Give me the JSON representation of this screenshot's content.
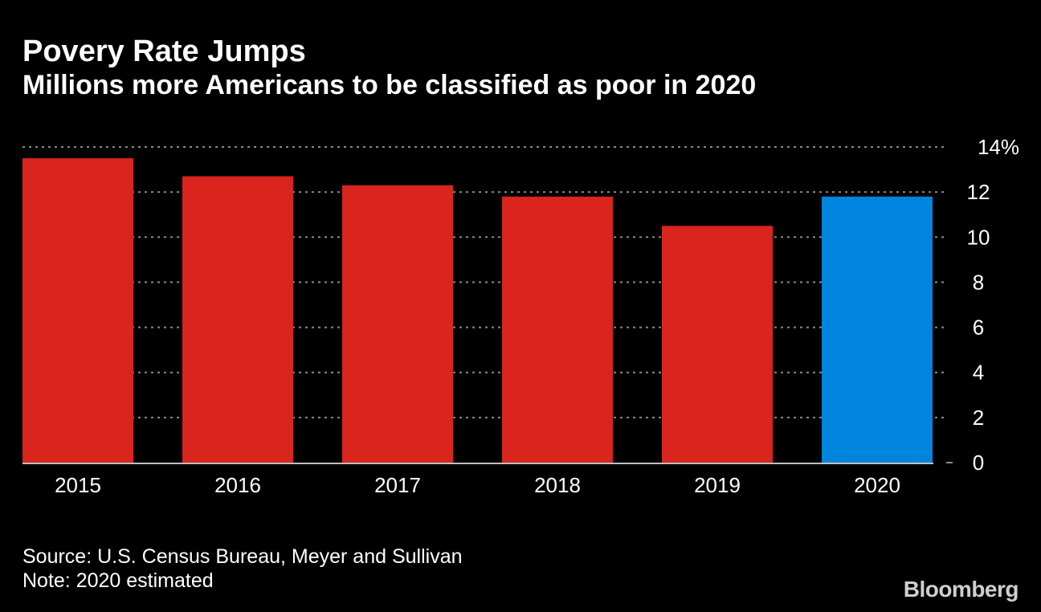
{
  "header": {
    "title": "Povery Rate Jumps",
    "subtitle": "Millions more Americans to be classified as poor in 2020"
  },
  "chart_data": {
    "type": "bar",
    "title": "Povery Rate Jumps",
    "subtitle": "Millions more Americans to be classified as poor in 2020",
    "categories": [
      "2015",
      "2016",
      "2017",
      "2018",
      "2019",
      "2020"
    ],
    "values": [
      13.5,
      12.7,
      12.3,
      11.8,
      10.5,
      11.8
    ],
    "colors": [
      "#d9251d",
      "#d9251d",
      "#d9251d",
      "#d9251d",
      "#d9251d",
      "#0085de"
    ],
    "ylim": [
      0,
      14
    ],
    "yticks": [
      0,
      2,
      4,
      6,
      8,
      10,
      12,
      14
    ],
    "ytick_labels": [
      "0",
      "2",
      "4",
      "6",
      "8",
      "10",
      "12",
      "14%"
    ],
    "y_axis_side": "right",
    "grid": true,
    "xlabel": "",
    "ylabel": ""
  },
  "footer": {
    "source": "Source: U.S. Census Bureau, Meyer and Sullivan",
    "note": "Note: 2020 estimated"
  },
  "brand": {
    "name": "Bloomberg"
  },
  "colors": {
    "background": "#000000",
    "bar_actual": "#d9251d",
    "bar_estimated": "#0085de",
    "grid": "#8a8a8a",
    "baseline": "#bfbfbf"
  }
}
